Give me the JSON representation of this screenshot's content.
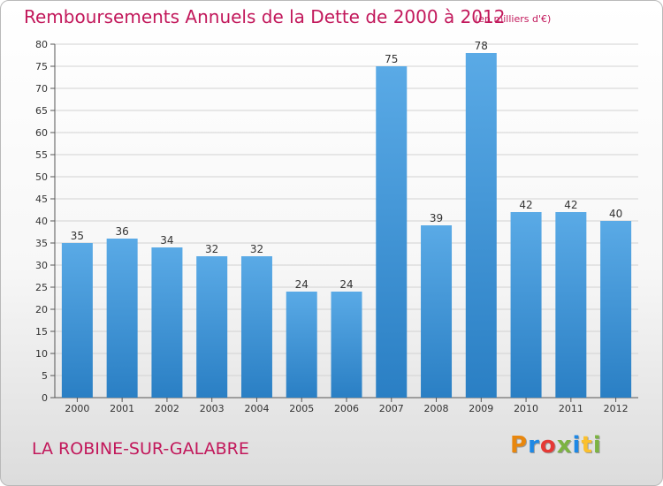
{
  "title": "Remboursements Annuels de la Dette de 2000 à 2012",
  "subtitle": "(en milliers d'€)",
  "town": "LA ROBINE-SUR-GALABRE",
  "logo": {
    "letters": [
      "P",
      "r",
      "o",
      "x",
      "i",
      "t",
      "i"
    ],
    "colors": [
      "#e8870e",
      "#1e88e5",
      "#e53935",
      "#7cb342",
      "#1e88e5",
      "#fbc02d",
      "#7cb342"
    ]
  },
  "colors": {
    "bar": "#5aaae6",
    "bar_dark": "#2a7fc4",
    "accent": "#c2185b",
    "grid": "#d2d2d2",
    "axis": "#555555"
  },
  "chart_data": {
    "type": "bar",
    "title": "Remboursements Annuels de la Dette de 2000 à 2012",
    "subtitle": "(en milliers d'€)",
    "categories": [
      "2000",
      "2001",
      "2002",
      "2003",
      "2004",
      "2005",
      "2006",
      "2007",
      "2008",
      "2009",
      "2010",
      "2011",
      "2012"
    ],
    "values": [
      35,
      36,
      34,
      32,
      32,
      24,
      24,
      75,
      39,
      78,
      42,
      42,
      40
    ],
    "data_labels": [
      "35",
      "36",
      "34",
      "32",
      "32",
      "24",
      "24",
      "75",
      "39",
      "78",
      "42",
      "42",
      "40"
    ],
    "ylim": [
      0,
      80
    ],
    "yticks": [
      0,
      5,
      10,
      15,
      20,
      25,
      30,
      35,
      40,
      45,
      50,
      55,
      60,
      65,
      70,
      75,
      80
    ],
    "grid": true,
    "xlabel": "",
    "ylabel": ""
  }
}
